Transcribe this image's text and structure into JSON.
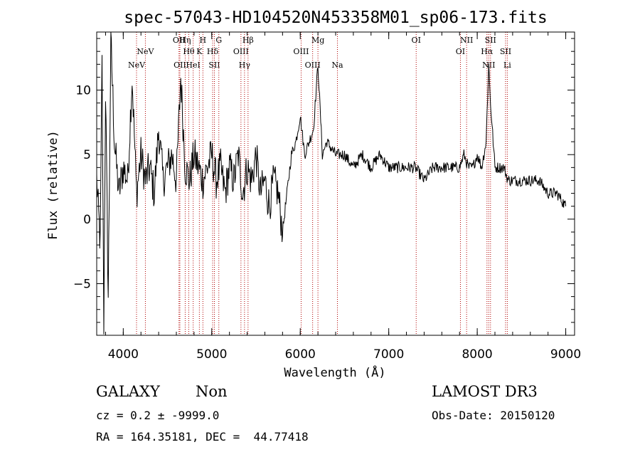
{
  "chart_data": {
    "type": "line",
    "title": "spec-57043-HD104520N453358M01_sp06-173.fits",
    "xlabel": "Wavelength (Å)",
    "ylabel": "Flux (relative)",
    "xlim": [
      3700,
      9100
    ],
    "ylim": [
      -9,
      14.5
    ],
    "xticks": [
      4000,
      5000,
      6000,
      7000,
      8000,
      9000
    ],
    "yticks": [
      -5,
      0,
      5,
      10
    ],
    "grid": false,
    "series": [
      {
        "values_x": [
          3700,
          3740,
          3760,
          3780,
          3800,
          3830,
          3860,
          3900,
          3950,
          4000,
          4050,
          4100,
          4150,
          4200,
          4250,
          4300,
          4350,
          4400,
          4450,
          4500,
          4550,
          4600,
          4650,
          4700,
          4750,
          4800,
          4850,
          4900,
          4950,
          5000,
          5050,
          5100,
          5150,
          5200,
          5250,
          5300,
          5350,
          5400,
          5450,
          5500,
          5550,
          5600,
          5650,
          5700,
          5750,
          5800,
          5850,
          5900,
          5950,
          6000,
          6050,
          6100,
          6150,
          6200,
          6250,
          6300,
          6400,
          6500,
          6600,
          6700,
          6800,
          6900,
          7000,
          7100,
          7200,
          7300,
          7400,
          7500,
          7600,
          7700,
          7800,
          7850,
          7900,
          7950,
          8000,
          8050,
          8100,
          8130,
          8150,
          8180,
          8200,
          8250,
          8300,
          8350,
          8400,
          8500,
          8600,
          8700,
          8800,
          8900,
          9000
        ],
        "values_y": [
          3,
          -2,
          12,
          -8,
          10,
          -6,
          14,
          6,
          2,
          4,
          3,
          11,
          2,
          5,
          3,
          4,
          2,
          7,
          3,
          4,
          5,
          3,
          11,
          4,
          3,
          5,
          4,
          3,
          4,
          5,
          3,
          4,
          2,
          4,
          3,
          5,
          2,
          4,
          3,
          5,
          2,
          3,
          1,
          3,
          2,
          -1,
          2,
          5,
          6,
          8,
          5,
          6,
          7,
          12,
          5,
          6,
          5,
          5,
          4,
          5,
          4,
          5,
          4,
          4,
          4,
          4,
          3,
          4,
          4,
          4,
          4,
          5,
          4,
          4,
          5,
          4,
          6,
          12,
          9,
          6,
          4,
          4,
          4,
          3,
          3,
          3,
          3,
          3,
          2,
          2,
          1
        ]
      }
    ],
    "line_markers": [
      {
        "x": 4150,
        "label": "NeV",
        "row": 3
      },
      {
        "x": 4250,
        "label": "NeV",
        "row": 2
      },
      {
        "x": 4630,
        "label": "OII",
        "row": 1
      },
      {
        "x": 4640,
        "label": "OII",
        "row": 3
      },
      {
        "x": 4700,
        "label": "Hη",
        "row": 1
      },
      {
        "x": 4740,
        "label": "Hθ",
        "row": 2
      },
      {
        "x": 4790,
        "label": "HeI",
        "row": 3
      },
      {
        "x": 4860,
        "label": "K",
        "row": 2
      },
      {
        "x": 4900,
        "label": "H",
        "row": 1
      },
      {
        "x": 5010,
        "label": "Hδ",
        "row": 2
      },
      {
        "x": 5030,
        "label": "SII",
        "row": 3
      },
      {
        "x": 5080,
        "label": "G",
        "row": 1
      },
      {
        "x": 5330,
        "label": "OIII",
        "row": 2
      },
      {
        "x": 5370,
        "label": "Hγ",
        "row": 3
      },
      {
        "x": 5410,
        "label": "Hβ",
        "row": 1
      },
      {
        "x": 6010,
        "label": "OIII",
        "row": 2
      },
      {
        "x": 6140,
        "label": "OIII",
        "row": 3
      },
      {
        "x": 6200,
        "label": "Mg",
        "row": 1
      },
      {
        "x": 6420,
        "label": "Na",
        "row": 3
      },
      {
        "x": 7310,
        "label": "OI",
        "row": 1
      },
      {
        "x": 7810,
        "label": "OI",
        "row": 2
      },
      {
        "x": 7880,
        "label": "NII",
        "row": 1
      },
      {
        "x": 8110,
        "label": "Hα",
        "row": 2
      },
      {
        "x": 8130,
        "label": "NII",
        "row": 3
      },
      {
        "x": 8150,
        "label": "SII",
        "row": 1
      },
      {
        "x": 8320,
        "label": "SII",
        "row": 2
      },
      {
        "x": 8340,
        "label": "Li",
        "row": 3
      }
    ]
  },
  "footer": {
    "object_class": "GALAXY",
    "subclass": "Non",
    "cz": "cz = 0.2 ± -9999.0",
    "radec": "RA = 164.35181, DEC =  44.77418",
    "survey": "LAMOST DR3",
    "obs_date": "Obs-Date: 20150120"
  }
}
